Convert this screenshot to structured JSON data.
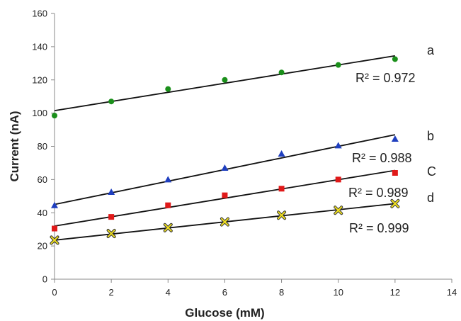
{
  "chart_data": {
    "type": "scatter",
    "xlabel": "Glucose  (mM)",
    "ylabel": "Current (nA)",
    "xlim": [
      0,
      14
    ],
    "ylim": [
      0,
      160
    ],
    "xticks": [
      0,
      2,
      4,
      6,
      8,
      10,
      12,
      14
    ],
    "yticks": [
      0,
      20,
      40,
      60,
      80,
      100,
      120,
      140,
      160
    ],
    "grid": false,
    "x": [
      0,
      2,
      4,
      6,
      8,
      10,
      12
    ],
    "series": [
      {
        "marker": "circle",
        "color": "#1a8f1a",
        "values": [
          98.5,
          107,
          114.5,
          120,
          124.5,
          129,
          132.5
        ],
        "trendline": [
          101.5,
          134.5
        ],
        "label": "a",
        "r2_text": "R² = 0.972"
      },
      {
        "marker": "triangle",
        "color": "#1f3fbf",
        "values": [
          44.5,
          52.5,
          60,
          67,
          75.5,
          80.5,
          84.5
        ],
        "trendline": [
          45,
          87
        ],
        "label": "b",
        "r2_text": "R² = 0.988"
      },
      {
        "marker": "square",
        "color": "#e01919",
        "values": [
          30.5,
          37.5,
          44.5,
          50.5,
          54.5,
          60,
          64
        ],
        "trendline": [
          32,
          65.5
        ],
        "label": "C",
        "r2_text": "R² = 0.989"
      },
      {
        "marker": "x",
        "color": "#f0e020",
        "values": [
          23.5,
          27.5,
          31,
          34.5,
          38.5,
          41.5,
          45.5
        ],
        "trendline": [
          23.5,
          45.5
        ],
        "label": "d",
        "r2_text": "R² = 0.999"
      }
    ]
  }
}
